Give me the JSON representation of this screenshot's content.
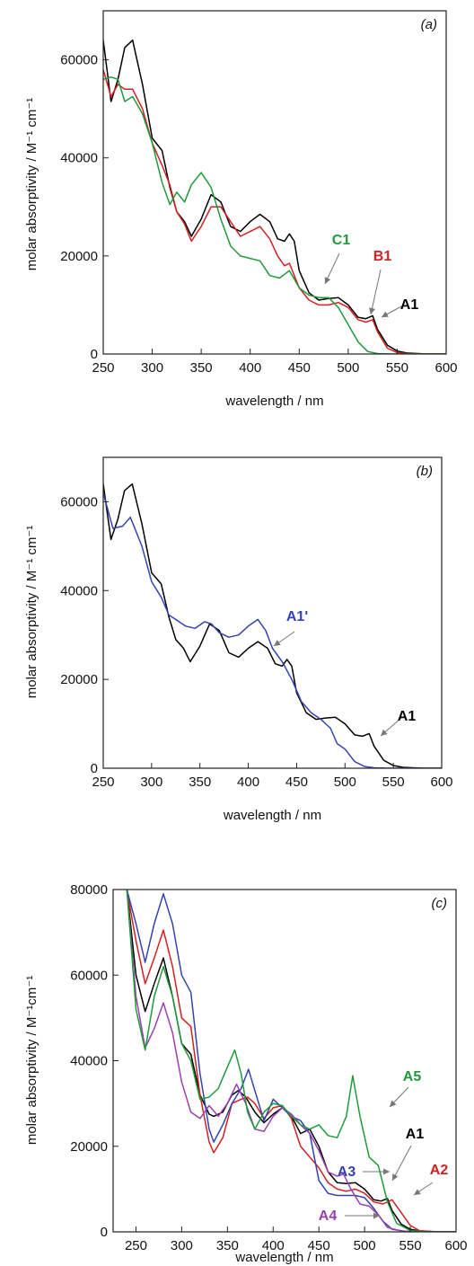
{
  "chart_data": [
    {
      "type": "line",
      "panel_label": "(a)",
      "xlabel": "wavelength / nm",
      "ylabel": "molar absorptivity / M⁻¹ cm⁻¹",
      "xlim": [
        250,
        600
      ],
      "ylim": [
        0,
        70000
      ],
      "xticks": [
        250,
        300,
        350,
        400,
        450,
        500,
        550,
        600
      ],
      "yticks": [
        0,
        20000,
        40000,
        60000
      ],
      "series": [
        {
          "name": "A1",
          "color": "#000000",
          "x": [
            250,
            258,
            265,
            272,
            280,
            290,
            300,
            310,
            318,
            325,
            333,
            340,
            350,
            360,
            370,
            380,
            390,
            400,
            410,
            420,
            428,
            435,
            440,
            445,
            450,
            460,
            470,
            480,
            490,
            500,
            510,
            518,
            525,
            530,
            540,
            550,
            560,
            580,
            600
          ],
          "y": [
            64000,
            51500,
            56000,
            62500,
            64000,
            55000,
            44000,
            41500,
            34000,
            29000,
            27000,
            24000,
            27500,
            32500,
            31000,
            26000,
            25000,
            27000,
            28500,
            27000,
            23500,
            23000,
            24500,
            23000,
            17000,
            12500,
            11000,
            11300,
            11500,
            10000,
            7500,
            7200,
            7800,
            5000,
            1800,
            600,
            200,
            0,
            0
          ]
        },
        {
          "name": "B1",
          "color": "#d42020",
          "x": [
            250,
            258,
            265,
            272,
            280,
            290,
            300,
            310,
            318,
            325,
            333,
            340,
            350,
            360,
            370,
            380,
            390,
            400,
            410,
            420,
            428,
            435,
            440,
            445,
            450,
            460,
            470,
            480,
            490,
            500,
            510,
            518,
            525,
            530,
            540,
            550,
            560,
            580,
            600
          ],
          "y": [
            58000,
            52500,
            55000,
            54000,
            54000,
            50000,
            43000,
            38500,
            34500,
            29000,
            26500,
            23000,
            26000,
            30000,
            30000,
            27000,
            24000,
            25000,
            26000,
            23500,
            20000,
            18000,
            18500,
            16000,
            13500,
            11000,
            10000,
            10000,
            10500,
            9500,
            7000,
            6500,
            7000,
            4500,
            1200,
            300,
            100,
            0,
            0
          ]
        },
        {
          "name": "C1",
          "color": "#1f9a3a",
          "x": [
            250,
            258,
            265,
            272,
            280,
            290,
            300,
            310,
            318,
            325,
            333,
            340,
            350,
            360,
            370,
            380,
            390,
            400,
            410,
            420,
            430,
            440,
            450,
            460,
            470,
            480,
            490,
            500,
            510,
            520,
            530,
            545,
            560,
            600
          ],
          "y": [
            56000,
            56500,
            56000,
            51500,
            52500,
            49000,
            43000,
            35000,
            30500,
            33000,
            31000,
            34500,
            37000,
            34000,
            27500,
            22000,
            20000,
            19500,
            19000,
            16000,
            15500,
            17000,
            13500,
            12000,
            11500,
            11500,
            9500,
            6000,
            2500,
            500,
            100,
            0,
            0,
            0
          ]
        }
      ],
      "annotations": [
        "C1",
        "B1",
        "A1"
      ]
    },
    {
      "type": "line",
      "panel_label": "(b)",
      "xlabel": "wavelength / nm",
      "ylabel": "molar absorptivity / M⁻¹ cm⁻¹",
      "xlim": [
        250,
        600
      ],
      "ylim": [
        0,
        70000
      ],
      "xticks": [
        250,
        300,
        350,
        400,
        450,
        500,
        550,
        600
      ],
      "yticks": [
        0,
        20000,
        40000,
        60000
      ],
      "series": [
        {
          "name": "A1",
          "color": "#000000",
          "x": [
            250,
            258,
            265,
            272,
            280,
            290,
            300,
            310,
            318,
            325,
            333,
            340,
            350,
            360,
            370,
            380,
            390,
            400,
            410,
            420,
            428,
            435,
            440,
            445,
            450,
            460,
            470,
            480,
            490,
            500,
            510,
            518,
            525,
            530,
            540,
            550,
            560,
            580,
            600
          ],
          "y": [
            64000,
            51500,
            56000,
            62500,
            64000,
            55000,
            44000,
            41500,
            34000,
            29000,
            27000,
            24000,
            27500,
            32500,
            31000,
            26000,
            25000,
            27000,
            28500,
            27000,
            23500,
            23000,
            24500,
            23000,
            17000,
            12500,
            11000,
            11300,
            11500,
            10000,
            7500,
            7200,
            7800,
            5000,
            1800,
            600,
            200,
            0,
            0
          ]
        },
        {
          "name": "A1'",
          "color": "#3344b0",
          "x": [
            250,
            260,
            270,
            278,
            290,
            300,
            310,
            318,
            325,
            335,
            345,
            355,
            362,
            370,
            380,
            390,
            400,
            410,
            418,
            425,
            435,
            445,
            455,
            465,
            475,
            485,
            492,
            500,
            510,
            520,
            530,
            545,
            560,
            600
          ],
          "y": [
            62000,
            54000,
            54500,
            56500,
            50000,
            42000,
            38500,
            34500,
            33500,
            32000,
            31500,
            33000,
            32500,
            30500,
            29500,
            30000,
            32000,
            33500,
            31000,
            27000,
            24000,
            20000,
            15000,
            12500,
            11000,
            9000,
            5500,
            4300,
            1500,
            400,
            100,
            0,
            0,
            0
          ]
        }
      ],
      "annotations": [
        "A1'",
        "A1"
      ]
    },
    {
      "type": "line",
      "panel_label": "(c)",
      "xlabel": "wavelength / nm",
      "ylabel": "molar absorptivity / M⁻¹cm⁻¹",
      "xlim": [
        225,
        600
      ],
      "ylim": [
        0,
        80000
      ],
      "xticks": [
        250,
        300,
        350,
        400,
        450,
        500,
        550,
        600
      ],
      "yticks": [
        0,
        20000,
        40000,
        60000,
        80000
      ],
      "series": [
        {
          "name": "A1",
          "color": "#000000",
          "x": [
            240,
            250,
            260,
            270,
            280,
            290,
            300,
            310,
            320,
            330,
            335,
            345,
            355,
            362,
            370,
            380,
            390,
            400,
            410,
            420,
            430,
            440,
            450,
            460,
            470,
            480,
            490,
            500,
            510,
            518,
            525,
            530,
            540,
            550,
            560,
            580,
            600
          ],
          "y": [
            80000,
            60000,
            51500,
            58000,
            64000,
            55000,
            44000,
            41500,
            32000,
            27500,
            27000,
            28000,
            32000,
            33000,
            31500,
            28000,
            25500,
            27500,
            29000,
            27000,
            23000,
            24000,
            20000,
            14000,
            11500,
            11300,
            11500,
            10000,
            7500,
            7200,
            7800,
            5000,
            1800,
            600,
            200,
            0,
            0
          ]
        },
        {
          "name": "A2",
          "color": "#d42020",
          "x": [
            240,
            250,
            260,
            270,
            280,
            290,
            300,
            310,
            320,
            330,
            335,
            345,
            355,
            365,
            372,
            380,
            390,
            400,
            410,
            420,
            430,
            440,
            450,
            460,
            470,
            480,
            490,
            500,
            510,
            520,
            530,
            540,
            550,
            560,
            580,
            600
          ],
          "y": [
            80000,
            68000,
            58000,
            64000,
            70500,
            62000,
            50000,
            48000,
            32000,
            21000,
            18500,
            22000,
            30000,
            31000,
            31500,
            30000,
            26500,
            29000,
            29500,
            26500,
            20000,
            17500,
            15000,
            11500,
            10000,
            9500,
            10000,
            9000,
            7000,
            6500,
            7500,
            4500,
            1500,
            300,
            0,
            0
          ]
        },
        {
          "name": "A3",
          "color": "#3344b0",
          "x": [
            240,
            250,
            260,
            270,
            280,
            290,
            300,
            310,
            320,
            330,
            335,
            345,
            355,
            365,
            373,
            380,
            390,
            400,
            410,
            420,
            430,
            440,
            450,
            460,
            470,
            480,
            490,
            500,
            510,
            520,
            530,
            545,
            560,
            600
          ],
          "y": [
            80000,
            72000,
            63000,
            72000,
            79000,
            72000,
            60000,
            56000,
            37000,
            24000,
            21000,
            25000,
            30000,
            33500,
            38000,
            33000,
            26000,
            31000,
            29000,
            27000,
            26000,
            23000,
            12000,
            9000,
            8500,
            8500,
            8500,
            8000,
            5500,
            2500,
            600,
            100,
            0,
            0
          ]
        },
        {
          "name": "A4",
          "color": "#9a40b0",
          "x": [
            240,
            250,
            260,
            270,
            280,
            290,
            300,
            310,
            320,
            330,
            340,
            350,
            360,
            370,
            380,
            390,
            400,
            410,
            420,
            430,
            440,
            450,
            460,
            470,
            477,
            485,
            495,
            505,
            515,
            525,
            540,
            560,
            600
          ],
          "y": [
            80000,
            55000,
            43000,
            47500,
            53500,
            46500,
            35000,
            28000,
            26500,
            29500,
            27000,
            30000,
            34500,
            30000,
            24000,
            23500,
            27000,
            29000,
            27500,
            25000,
            23000,
            19000,
            14000,
            13000,
            13500,
            10000,
            6500,
            6000,
            4000,
            1000,
            200,
            0,
            0
          ]
        },
        {
          "name": "A5",
          "color": "#1f9a3a",
          "x": [
            240,
            250,
            260,
            270,
            280,
            290,
            300,
            310,
            320,
            330,
            340,
            350,
            358,
            365,
            372,
            380,
            390,
            400,
            410,
            420,
            430,
            440,
            450,
            460,
            470,
            480,
            487,
            495,
            505,
            515,
            525,
            535,
            550,
            570,
            600
          ],
          "y": [
            80000,
            52000,
            42500,
            55000,
            62000,
            55000,
            44000,
            40000,
            31000,
            31500,
            33500,
            38500,
            42500,
            37000,
            28000,
            24000,
            28000,
            30000,
            29500,
            27000,
            25000,
            24000,
            25000,
            22500,
            22000,
            27000,
            36500,
            27000,
            17500,
            15500,
            7000,
            2000,
            300,
            0,
            0
          ]
        }
      ],
      "annotations": [
        "A5",
        "A1",
        "A2",
        "A3",
        "A4"
      ]
    }
  ]
}
